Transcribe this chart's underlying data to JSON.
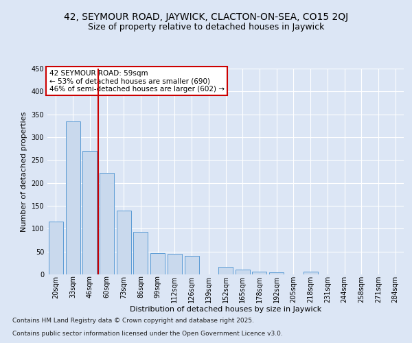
{
  "title_line1": "42, SEYMOUR ROAD, JAYWICK, CLACTON-ON-SEA, CO15 2QJ",
  "title_line2": "Size of property relative to detached houses in Jaywick",
  "xlabel": "Distribution of detached houses by size in Jaywick",
  "ylabel": "Number of detached properties",
  "categories": [
    "20sqm",
    "33sqm",
    "46sqm",
    "60sqm",
    "73sqm",
    "86sqm",
    "99sqm",
    "112sqm",
    "126sqm",
    "139sqm",
    "152sqm",
    "165sqm",
    "178sqm",
    "192sqm",
    "205sqm",
    "218sqm",
    "231sqm",
    "244sqm",
    "258sqm",
    "271sqm",
    "284sqm"
  ],
  "values": [
    115,
    335,
    270,
    222,
    140,
    93,
    46,
    45,
    40,
    0,
    16,
    10,
    6,
    5,
    0,
    6,
    0,
    0,
    0,
    0,
    0
  ],
  "bar_color": "#c9d9ed",
  "bar_edge_color": "#5b9bd5",
  "vline_x_idx": 2.5,
  "vline_color": "#cc0000",
  "annotation_text": "42 SEYMOUR ROAD: 59sqm\n← 53% of detached houses are smaller (690)\n46% of semi-detached houses are larger (602) →",
  "annotation_box_color": "#cc0000",
  "ylim": [
    0,
    450
  ],
  "yticks": [
    0,
    50,
    100,
    150,
    200,
    250,
    300,
    350,
    400,
    450
  ],
  "footer_line1": "Contains HM Land Registry data © Crown copyright and database right 2025.",
  "footer_line2": "Contains public sector information licensed under the Open Government Licence v3.0.",
  "bg_color": "#dce6f5",
  "plot_bg_color": "#dce6f5",
  "grid_color": "#ffffff",
  "title_fontsize": 10,
  "subtitle_fontsize": 9,
  "axis_label_fontsize": 8,
  "tick_fontsize": 7,
  "footer_fontsize": 6.5,
  "annot_fontsize": 7.5
}
